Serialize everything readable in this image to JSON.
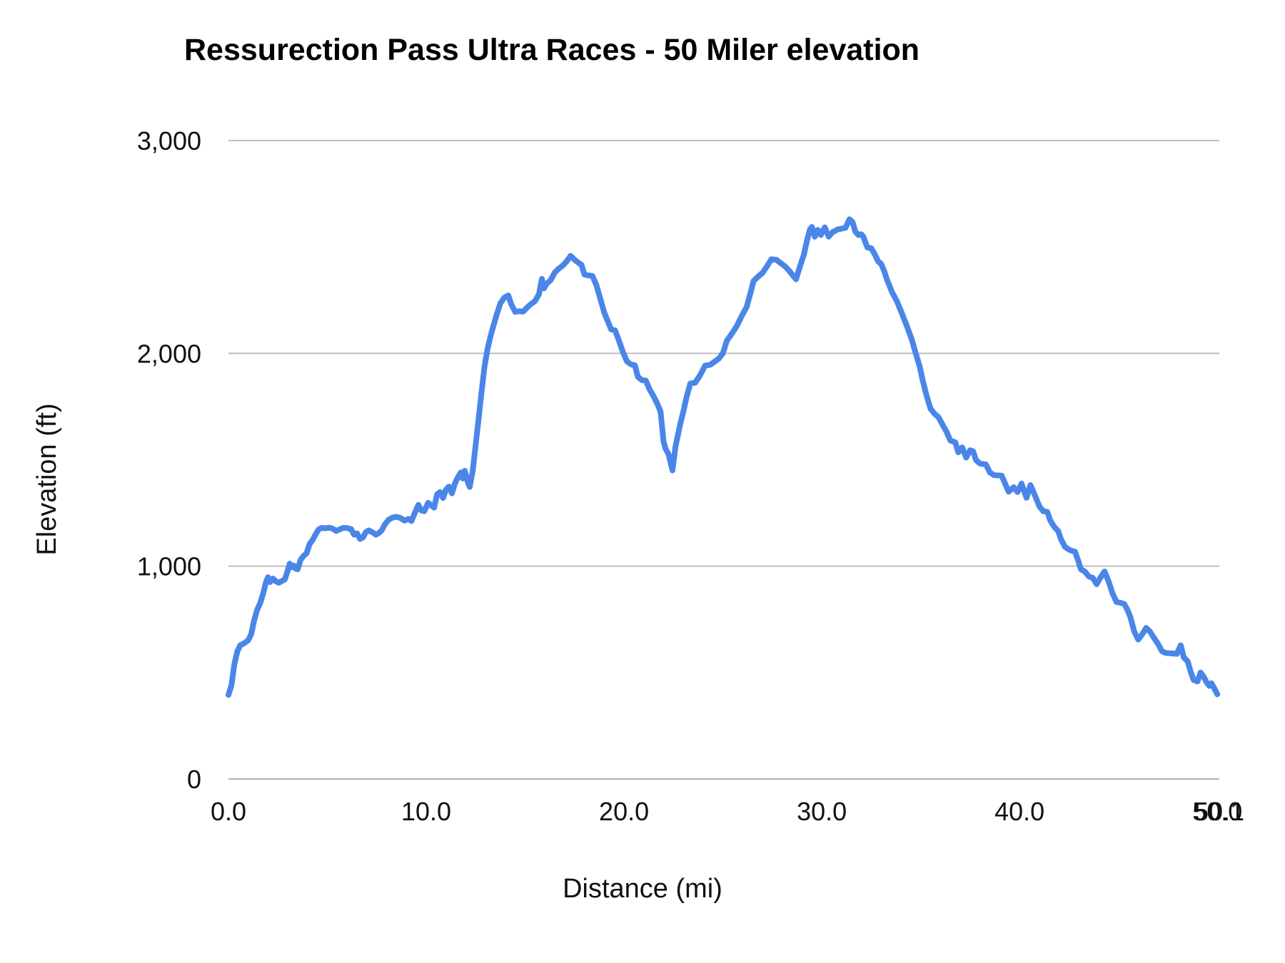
{
  "title": "Ressurection Pass Ultra Races - 50 Miler elevation",
  "colors": {
    "line": "#4a86e8",
    "gridline": "#bdbdbd",
    "baseline": "#b0b0b0",
    "text": "#111111",
    "background": "#ffffff"
  },
  "x_axis": {
    "title": "Distance (mi)",
    "min": 0,
    "max": 50.1,
    "ticks": [
      {
        "label": "0.0",
        "value": 0
      },
      {
        "label": "10.0",
        "value": 10
      },
      {
        "label": "20.0",
        "value": 20
      },
      {
        "label": "30.0",
        "value": 30
      },
      {
        "label": "40.0",
        "value": 40
      },
      {
        "label": "50.0",
        "value": 50
      },
      {
        "label": "50.1",
        "value": 50.1
      }
    ]
  },
  "y_axis": {
    "title": "Elevation (ft)",
    "min": 0,
    "max": 3000,
    "ticks": [
      {
        "label": "0",
        "value": 0
      },
      {
        "label": "1,000",
        "value": 1000
      },
      {
        "label": "2,000",
        "value": 2000
      },
      {
        "label": "3,000",
        "value": 3000
      }
    ]
  },
  "chart_data": {
    "type": "line",
    "title": "Ressurection Pass Ultra Races - 50 Miler elevation",
    "xlabel": "Distance (mi)",
    "ylabel": "Elevation (ft)",
    "xlim": [
      0,
      50.1
    ],
    "ylim": [
      0,
      3000
    ],
    "grid": true,
    "legend_position": "none",
    "series": [
      {
        "name": "Elevation",
        "color": "#4a86e8",
        "points": [
          [
            0,
            395
          ],
          [
            0.15,
            440
          ],
          [
            0.3,
            540
          ],
          [
            0.45,
            600
          ],
          [
            0.6,
            628
          ],
          [
            0.8,
            638
          ],
          [
            1,
            652
          ],
          [
            1.15,
            680
          ],
          [
            1.3,
            745
          ],
          [
            1.45,
            795
          ],
          [
            1.6,
            825
          ],
          [
            1.75,
            870
          ],
          [
            1.9,
            925
          ],
          [
            2,
            948
          ],
          [
            2.1,
            925
          ],
          [
            2.25,
            942
          ],
          [
            2.4,
            928
          ],
          [
            2.55,
            922
          ],
          [
            2.7,
            930
          ],
          [
            2.85,
            938
          ],
          [
            3,
            980
          ],
          [
            3.1,
            1012
          ],
          [
            3.2,
            995
          ],
          [
            3.3,
            1003
          ],
          [
            3.4,
            988
          ],
          [
            3.5,
            985
          ],
          [
            3.65,
            1030
          ],
          [
            3.8,
            1048
          ],
          [
            3.95,
            1060
          ],
          [
            4.1,
            1103
          ],
          [
            4.25,
            1122
          ],
          [
            4.4,
            1148
          ],
          [
            4.55,
            1172
          ],
          [
            4.7,
            1180
          ],
          [
            4.9,
            1178
          ],
          [
            5.1,
            1181
          ],
          [
            5.3,
            1175
          ],
          [
            5.45,
            1165
          ],
          [
            5.6,
            1172
          ],
          [
            5.8,
            1180
          ],
          [
            6,
            1179
          ],
          [
            6.2,
            1174
          ],
          [
            6.35,
            1148
          ],
          [
            6.5,
            1154
          ],
          [
            6.65,
            1128
          ],
          [
            6.8,
            1135
          ],
          [
            6.95,
            1160
          ],
          [
            7.1,
            1168
          ],
          [
            7.3,
            1158
          ],
          [
            7.45,
            1148
          ],
          [
            7.6,
            1155
          ],
          [
            7.75,
            1168
          ],
          [
            7.9,
            1195
          ],
          [
            8.1,
            1218
          ],
          [
            8.3,
            1228
          ],
          [
            8.5,
            1232
          ],
          [
            8.7,
            1226
          ],
          [
            8.9,
            1214
          ],
          [
            9.1,
            1222
          ],
          [
            9.25,
            1212
          ],
          [
            9.4,
            1245
          ],
          [
            9.6,
            1288
          ],
          [
            9.75,
            1262
          ],
          [
            9.9,
            1258
          ],
          [
            10.1,
            1298
          ],
          [
            10.25,
            1285
          ],
          [
            10.4,
            1275
          ],
          [
            10.55,
            1338
          ],
          [
            10.7,
            1348
          ],
          [
            10.85,
            1320
          ],
          [
            11,
            1360
          ],
          [
            11.15,
            1374
          ],
          [
            11.3,
            1342
          ],
          [
            11.45,
            1388
          ],
          [
            11.6,
            1418
          ],
          [
            11.75,
            1440
          ],
          [
            11.85,
            1412
          ],
          [
            11.95,
            1448
          ],
          [
            12.1,
            1394
          ],
          [
            12.2,
            1372
          ],
          [
            12.35,
            1448
          ],
          [
            12.5,
            1570
          ],
          [
            12.65,
            1695
          ],
          [
            12.8,
            1820
          ],
          [
            12.95,
            1940
          ],
          [
            13.1,
            2020
          ],
          [
            13.25,
            2080
          ],
          [
            13.4,
            2130
          ],
          [
            13.55,
            2178
          ],
          [
            13.75,
            2235
          ],
          [
            13.95,
            2262
          ],
          [
            14.15,
            2272
          ],
          [
            14.3,
            2230
          ],
          [
            14.5,
            2195
          ],
          [
            14.7,
            2198
          ],
          [
            14.9,
            2196
          ],
          [
            15.1,
            2215
          ],
          [
            15.3,
            2232
          ],
          [
            15.5,
            2245
          ],
          [
            15.7,
            2278
          ],
          [
            15.85,
            2350
          ],
          [
            15.95,
            2305
          ],
          [
            16.1,
            2328
          ],
          [
            16.3,
            2345
          ],
          [
            16.5,
            2380
          ],
          [
            16.7,
            2398
          ],
          [
            16.9,
            2412
          ],
          [
            17.1,
            2432
          ],
          [
            17.3,
            2458
          ],
          [
            17.5,
            2440
          ],
          [
            17.7,
            2425
          ],
          [
            17.85,
            2416
          ],
          [
            18,
            2370
          ],
          [
            18.2,
            2366
          ],
          [
            18.4,
            2364
          ],
          [
            18.6,
            2322
          ],
          [
            18.8,
            2258
          ],
          [
            19,
            2192
          ],
          [
            19.2,
            2146
          ],
          [
            19.35,
            2112
          ],
          [
            19.55,
            2108
          ],
          [
            19.75,
            2058
          ],
          [
            19.95,
            2005
          ],
          [
            20.15,
            1962
          ],
          [
            20.35,
            1948
          ],
          [
            20.55,
            1944
          ],
          [
            20.7,
            1890
          ],
          [
            20.9,
            1874
          ],
          [
            21.1,
            1872
          ],
          [
            21.3,
            1830
          ],
          [
            21.5,
            1798
          ],
          [
            21.7,
            1760
          ],
          [
            21.85,
            1726
          ],
          [
            22,
            1585
          ],
          [
            22.1,
            1552
          ],
          [
            22.25,
            1526
          ],
          [
            22.45,
            1450
          ],
          [
            22.6,
            1560
          ],
          [
            22.7,
            1605
          ],
          [
            22.85,
            1670
          ],
          [
            23,
            1726
          ],
          [
            23.15,
            1790
          ],
          [
            23.35,
            1858
          ],
          [
            23.6,
            1862
          ],
          [
            23.85,
            1898
          ],
          [
            24.1,
            1942
          ],
          [
            24.35,
            1946
          ],
          [
            24.6,
            1962
          ],
          [
            24.8,
            1976
          ],
          [
            25,
            2000
          ],
          [
            25.2,
            2060
          ],
          [
            25.45,
            2092
          ],
          [
            25.7,
            2128
          ],
          [
            25.95,
            2175
          ],
          [
            26.2,
            2218
          ],
          [
            26.4,
            2285
          ],
          [
            26.55,
            2340
          ],
          [
            26.8,
            2362
          ],
          [
            27,
            2378
          ],
          [
            27.2,
            2405
          ],
          [
            27.45,
            2442
          ],
          [
            27.7,
            2440
          ],
          [
            27.95,
            2422
          ],
          [
            28.15,
            2408
          ],
          [
            28.35,
            2388
          ],
          [
            28.55,
            2365
          ],
          [
            28.7,
            2348
          ],
          [
            28.9,
            2410
          ],
          [
            29.1,
            2465
          ],
          [
            29.25,
            2530
          ],
          [
            29.4,
            2582
          ],
          [
            29.5,
            2594
          ],
          [
            29.65,
            2548
          ],
          [
            29.8,
            2580
          ],
          [
            29.95,
            2556
          ],
          [
            30.15,
            2592
          ],
          [
            30.35,
            2548
          ],
          [
            30.55,
            2570
          ],
          [
            30.8,
            2582
          ],
          [
            31,
            2586
          ],
          [
            31.2,
            2590
          ],
          [
            31.4,
            2630
          ],
          [
            31.55,
            2618
          ],
          [
            31.7,
            2572
          ],
          [
            31.85,
            2556
          ],
          [
            32,
            2560
          ],
          [
            32.1,
            2548
          ],
          [
            32.3,
            2498
          ],
          [
            32.5,
            2494
          ],
          [
            32.7,
            2462
          ],
          [
            32.85,
            2432
          ],
          [
            33,
            2420
          ],
          [
            33.15,
            2388
          ],
          [
            33.3,
            2345
          ],
          [
            33.55,
            2288
          ],
          [
            33.8,
            2244
          ],
          [
            34.05,
            2188
          ],
          [
            34.3,
            2128
          ],
          [
            34.55,
            2065
          ],
          [
            34.75,
            2000
          ],
          [
            34.95,
            1938
          ],
          [
            35.1,
            1874
          ],
          [
            35.3,
            1800
          ],
          [
            35.5,
            1740
          ],
          [
            35.7,
            1716
          ],
          [
            35.9,
            1700
          ],
          [
            36.1,
            1666
          ],
          [
            36.3,
            1633
          ],
          [
            36.5,
            1590
          ],
          [
            36.75,
            1582
          ],
          [
            36.9,
            1535
          ],
          [
            37.1,
            1558
          ],
          [
            37.3,
            1510
          ],
          [
            37.5,
            1545
          ],
          [
            37.65,
            1540
          ],
          [
            37.8,
            1498
          ],
          [
            38,
            1482
          ],
          [
            38.3,
            1478
          ],
          [
            38.5,
            1440
          ],
          [
            38.7,
            1428
          ],
          [
            39.1,
            1425
          ],
          [
            39.3,
            1381
          ],
          [
            39.45,
            1350
          ],
          [
            39.7,
            1371
          ],
          [
            39.9,
            1348
          ],
          [
            40.1,
            1388
          ],
          [
            40.35,
            1321
          ],
          [
            40.55,
            1381
          ],
          [
            40.75,
            1338
          ],
          [
            41,
            1281
          ],
          [
            41.2,
            1258
          ],
          [
            41.4,
            1255
          ],
          [
            41.55,
            1215
          ],
          [
            41.75,
            1185
          ],
          [
            41.95,
            1165
          ],
          [
            42.1,
            1125
          ],
          [
            42.3,
            1090
          ],
          [
            42.55,
            1075
          ],
          [
            42.8,
            1068
          ],
          [
            42.95,
            1030
          ],
          [
            43.1,
            985
          ],
          [
            43.3,
            975
          ],
          [
            43.5,
            952
          ],
          [
            43.7,
            945
          ],
          [
            43.9,
            915
          ],
          [
            44.1,
            948
          ],
          [
            44.3,
            975
          ],
          [
            44.5,
            928
          ],
          [
            44.7,
            872
          ],
          [
            44.9,
            832
          ],
          [
            45.1,
            828
          ],
          [
            45.3,
            822
          ],
          [
            45.45,
            795
          ],
          [
            45.6,
            762
          ],
          [
            45.8,
            692
          ],
          [
            46,
            655
          ],
          [
            46.2,
            680
          ],
          [
            46.4,
            710
          ],
          [
            46.6,
            692
          ],
          [
            46.8,
            662
          ],
          [
            47,
            635
          ],
          [
            47.2,
            600
          ],
          [
            47.4,
            592
          ],
          [
            47.7,
            590
          ],
          [
            47.95,
            588
          ],
          [
            48.15,
            628
          ],
          [
            48.3,
            572
          ],
          [
            48.5,
            552
          ],
          [
            48.65,
            505
          ],
          [
            48.8,
            465
          ],
          [
            49,
            458
          ],
          [
            49.15,
            500
          ],
          [
            49.3,
            482
          ],
          [
            49.45,
            455
          ],
          [
            49.6,
            437
          ],
          [
            49.7,
            450
          ],
          [
            49.85,
            425
          ],
          [
            50,
            398
          ]
        ]
      }
    ]
  }
}
